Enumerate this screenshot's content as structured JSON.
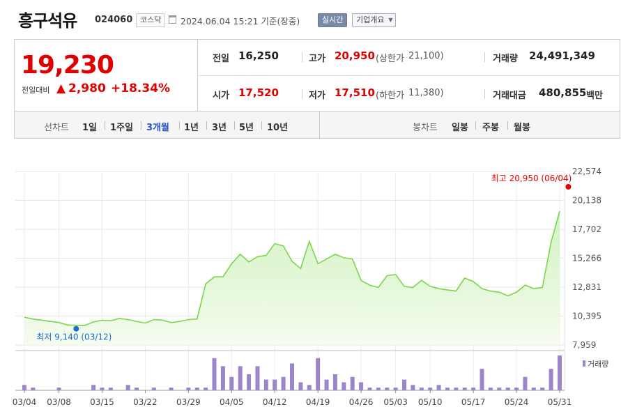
{
  "header": {
    "name": "흥구석유",
    "code": "024060",
    "market": "코스닥",
    "datetime": "2024.06.04 15:21 기준(장중)",
    "live_label": "실시간",
    "info_label": "기업개요"
  },
  "quote": {
    "price": "19,230",
    "change_label": "전일대비",
    "change_arrow": "▲",
    "change_value": "2,980",
    "change_pct": "+18.34%",
    "prev_close_label": "전일",
    "prev_close": "16,250",
    "high_label": "고가",
    "high": "20,950",
    "upper_limit_label": "(상한가",
    "upper_limit": "21,100)",
    "volume_label": "거래량",
    "volume": "24,491,349",
    "open_label": "시가",
    "open": "17,520",
    "low_label": "저가",
    "low": "17,510",
    "lower_limit_label": "(하한가",
    "lower_limit": "11,380)",
    "amount_label": "거래대금",
    "amount": "480,855",
    "amount_unit": "백만"
  },
  "tabs": {
    "line_label": "선차트",
    "periods": [
      "1일",
      "1주일",
      "3개월",
      "1년",
      "3년",
      "5년",
      "10년"
    ],
    "active": "3개월",
    "candle_label": "봉차트",
    "candles": [
      "일봉",
      "주봉",
      "월봉"
    ]
  },
  "chart_data": {
    "type": "area",
    "price_ticks": [
      "22,574",
      "20,138",
      "17,702",
      "15,266",
      "12,831",
      "10,395",
      "7,959"
    ],
    "ylim": [
      7959,
      22574
    ],
    "x_labels": [
      "03/04",
      "03/08",
      "03/15",
      "03/22",
      "03/29",
      "04/05",
      "04/12",
      "04/19",
      "04/26",
      "05/03",
      "05/10",
      "05/17",
      "05/24",
      "05/31"
    ],
    "x_label_index": [
      0,
      4,
      9,
      14,
      19,
      24,
      29,
      34,
      39,
      43,
      47,
      52,
      57,
      62
    ],
    "high_annotation": "최고 20,950 (06/04)",
    "low_annotation": "최저 9,140 (03/12)",
    "high_index": 63,
    "low_index": 6,
    "volume_legend": "거래량",
    "prices": [
      10300,
      10150,
      10050,
      9950,
      9850,
      9650,
      9620,
      9610,
      9900,
      10050,
      10000,
      10200,
      10100,
      9950,
      9800,
      10100,
      10050,
      9850,
      9950,
      10100,
      10150,
      13100,
      13700,
      13700,
      14800,
      15600,
      14950,
      15400,
      15500,
      16500,
      16300,
      15000,
      14400,
      16700,
      14800,
      15200,
      15600,
      15300,
      15200,
      13400,
      13000,
      12800,
      13800,
      13900,
      12900,
      12800,
      13400,
      12900,
      12700,
      12600,
      12500,
      13600,
      13300,
      12700,
      12500,
      12400,
      12100,
      12400,
      13000,
      12700,
      12800,
      16600,
      19230
    ],
    "volumes": [
      2,
      1,
      0,
      0,
      1,
      0,
      0,
      0,
      2,
      1,
      1,
      0,
      2,
      1,
      0,
      1,
      0,
      1,
      0,
      1,
      1,
      1,
      12,
      9,
      5,
      9,
      6,
      9,
      4,
      4,
      5,
      10,
      3,
      2,
      12,
      4,
      6,
      3,
      5,
      3,
      1,
      1,
      1,
      1,
      4,
      2,
      1,
      1,
      2,
      1,
      1,
      1,
      1,
      8,
      1,
      1,
      1,
      1,
      5,
      1,
      1,
      8,
      13
    ]
  }
}
